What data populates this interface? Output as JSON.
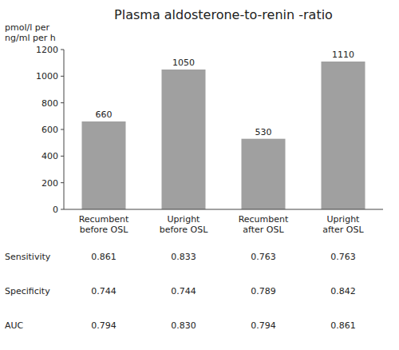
{
  "chart_data": {
    "type": "bar",
    "title": "Plasma aldosterone-to-renin -ratio",
    "ylabel": "pmol/l per\nng/ml per h",
    "categories": [
      "Recumbent\nbefore OSL",
      "Upright\nbefore OSL",
      "Recumbent\nafter OSL",
      "Upright\nafter OSL"
    ],
    "values": [
      660,
      1050,
      530,
      1110
    ],
    "color": "#a0a0a0",
    "ylim": [
      0,
      1200
    ],
    "yticks": [
      0,
      200,
      400,
      600,
      800,
      1000,
      1200
    ],
    "grid": false,
    "data_labels": true,
    "table": {
      "row_labels": [
        "Sensitivity",
        "Specificity",
        "AUC"
      ],
      "rows": [
        [
          "0.861",
          "0.833",
          "0.763",
          "0.763"
        ],
        [
          "0.744",
          "0.744",
          "0.789",
          "0.842"
        ],
        [
          "0.794",
          "0.830",
          "0.794",
          "0.861"
        ]
      ]
    }
  }
}
